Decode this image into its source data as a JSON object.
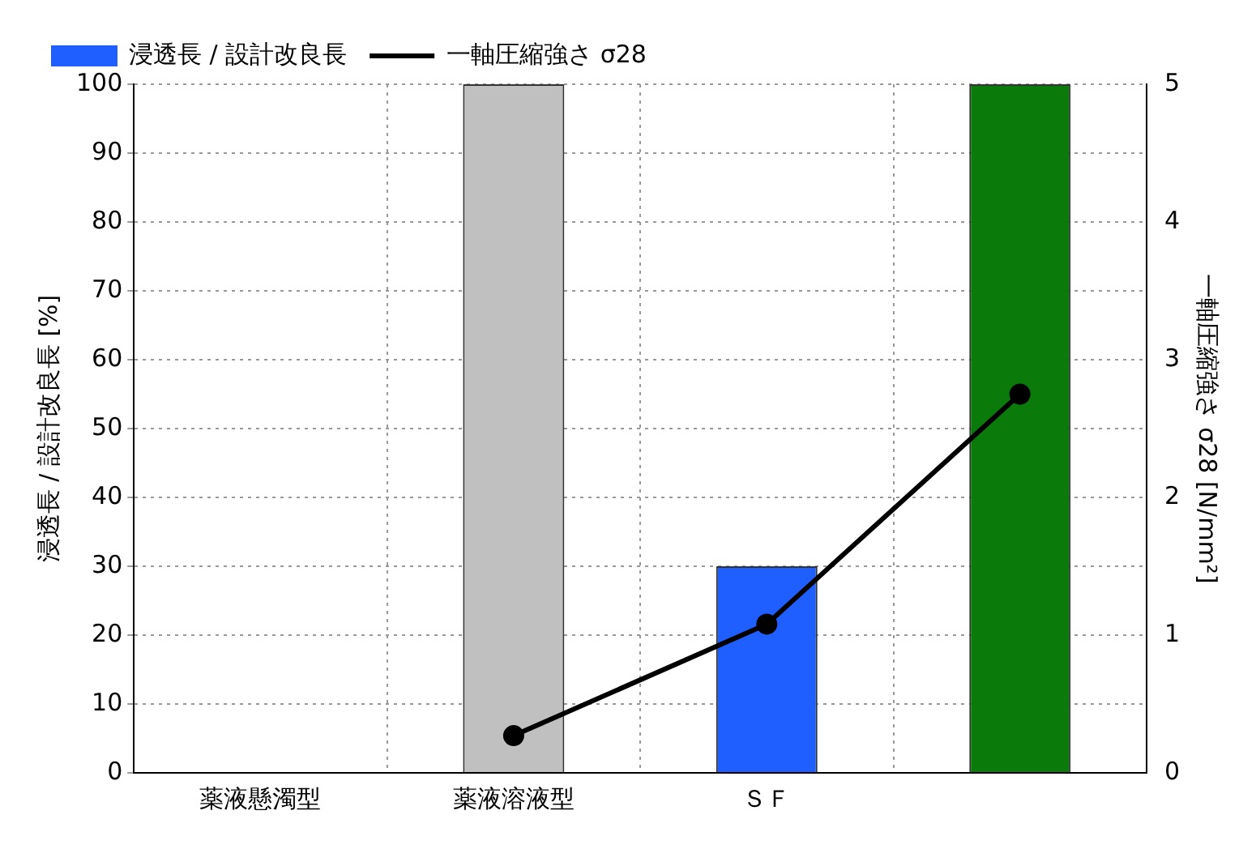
{
  "chart_data": {
    "type": "bar",
    "categories": [
      "薬液懸濁型",
      "薬液溶液型",
      "ＳＦ",
      null
    ],
    "series": [
      {
        "name": "浸透長 / 設計改良長",
        "color": "#1f5fff",
        "colors": [
          "#1f5fff",
          "#c0c0c0",
          "#1f5fff",
          "#0a7a0a"
        ],
        "values": [
          0,
          100,
          30,
          100
        ]
      },
      {
        "name": "一軸圧縮強さ σ28",
        "type": "line",
        "axis": "y2",
        "color": "#000000",
        "values": [
          null,
          0.27,
          1.08,
          2.75
        ]
      }
    ],
    "ylabel": "浸透長 / 設計改良長 [%]",
    "y2label": "一軸圧縮強さ σ28 [N/mm²]",
    "ylim": [
      0,
      100
    ],
    "yticks": [
      0,
      10,
      20,
      30,
      40,
      50,
      60,
      70,
      80,
      90,
      100
    ],
    "y2lim": [
      0,
      5
    ],
    "y2ticks": [
      0,
      1,
      2,
      3,
      4,
      5
    ],
    "grid": true,
    "legend": "top left",
    "marker": "circle",
    "line_style": "solid"
  }
}
